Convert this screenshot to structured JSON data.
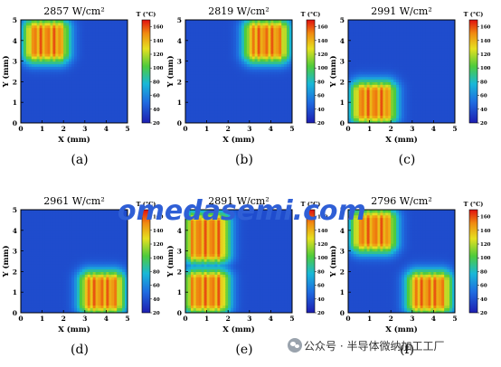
{
  "chart_data": [
    {
      "type": "heatmap",
      "title": "2857 W/cm²",
      "caption": "(a)",
      "xlabel": "X (mm)",
      "ylabel": "Y (mm)",
      "xlim": [
        0,
        5
      ],
      "ylim": [
        0,
        5
      ],
      "xticks": [
        "0",
        "1",
        "2",
        "3",
        "4",
        "5"
      ],
      "yticks": [
        "0",
        "1",
        "2",
        "3",
        "4",
        "5"
      ],
      "colorbar": {
        "label": "T (°C)",
        "ticks": [
          "20",
          "40",
          "60",
          "80",
          "100",
          "120",
          "140",
          "160"
        ],
        "range": [
          20,
          170
        ]
      },
      "heat_sources": [
        {
          "x_range": [
            0.2,
            2.2
          ],
          "y_range": [
            3.0,
            5.0
          ],
          "peak_T": 160
        }
      ]
    },
    {
      "type": "heatmap",
      "title": "2819 W/cm²",
      "caption": "(b)",
      "xlabel": "X (mm)",
      "ylabel": "Y (mm)",
      "xlim": [
        0,
        5
      ],
      "ylim": [
        0,
        5
      ],
      "xticks": [
        "0",
        "1",
        "2",
        "3",
        "4",
        "5"
      ],
      "yticks": [
        "0",
        "1",
        "2",
        "3",
        "4",
        "5"
      ],
      "colorbar": {
        "label": "T (°C)",
        "ticks": [
          "20",
          "40",
          "60",
          "80",
          "100",
          "120",
          "140",
          "160"
        ],
        "range": [
          20,
          170
        ]
      },
      "heat_sources": [
        {
          "x_range": [
            2.8,
            4.8
          ],
          "y_range": [
            3.0,
            5.0
          ],
          "peak_T": 160
        }
      ]
    },
    {
      "type": "heatmap",
      "title": "2991 W/cm²",
      "caption": "(c)",
      "xlabel": "X (mm)",
      "ylabel": "Y (mm)",
      "xlim": [
        0,
        5
      ],
      "ylim": [
        0,
        5
      ],
      "xticks": [
        "0",
        "1",
        "2",
        "3",
        "4",
        "5"
      ],
      "yticks": [
        "0",
        "1",
        "2",
        "3",
        "4",
        "5"
      ],
      "colorbar": {
        "label": "T (°C)",
        "ticks": [
          "20",
          "40",
          "60",
          "80",
          "100",
          "120",
          "140",
          "160"
        ],
        "range": [
          20,
          170
        ]
      },
      "heat_sources": [
        {
          "x_range": [
            0.2,
            2.2
          ],
          "y_range": [
            0.0,
            2.0
          ],
          "peak_T": 160
        }
      ]
    },
    {
      "type": "heatmap",
      "title": "2961 W/cm²",
      "caption": "(d)",
      "xlabel": "X (mm)",
      "ylabel": "Y (mm)",
      "xlim": [
        0,
        5
      ],
      "ylim": [
        0,
        5
      ],
      "xticks": [
        "0",
        "1",
        "2",
        "3",
        "4",
        "5"
      ],
      "yticks": [
        "0",
        "1",
        "2",
        "3",
        "4",
        "5"
      ],
      "colorbar": {
        "label": "T (°C)",
        "ticks": [
          "20",
          "40",
          "60",
          "80",
          "100",
          "120",
          "140",
          "160"
        ],
        "range": [
          20,
          170
        ]
      },
      "heat_sources": [
        {
          "x_range": [
            2.8,
            4.8
          ],
          "y_range": [
            0.0,
            2.0
          ],
          "peak_T": 160
        }
      ]
    },
    {
      "type": "heatmap",
      "title": "2891 W/cm²",
      "caption": "(e)",
      "xlabel": "X (mm)",
      "ylabel": "Y (mm)",
      "xlim": [
        0,
        5
      ],
      "ylim": [
        0,
        5
      ],
      "xticks": [
        "0",
        "1",
        "2",
        "3",
        "4",
        "5"
      ],
      "yticks": [
        "0",
        "1",
        "2",
        "3",
        "4",
        "5"
      ],
      "colorbar": {
        "label": "T (°C)",
        "ticks": [
          "20",
          "40",
          "60",
          "80",
          "100",
          "120",
          "140",
          "160"
        ],
        "range": [
          20,
          170
        ]
      },
      "heat_sources": [
        {
          "x_range": [
            0.0,
            2.0
          ],
          "y_range": [
            0.0,
            2.1
          ],
          "peak_T": 160
        },
        {
          "x_range": [
            0.0,
            2.0
          ],
          "y_range": [
            2.3,
            5.0
          ],
          "peak_T": 160
        }
      ]
    },
    {
      "type": "heatmap",
      "title": "2796 W/cm²",
      "caption": "(f)",
      "xlabel": "X (mm)",
      "ylabel": "Y (mm)",
      "xlim": [
        0,
        5
      ],
      "ylim": [
        0,
        5
      ],
      "xticks": [
        "0",
        "1",
        "2",
        "3",
        "4",
        "5"
      ],
      "yticks": [
        "0",
        "1",
        "2",
        "3",
        "4",
        "5"
      ],
      "colorbar": {
        "label": "T (°C)",
        "ticks": [
          "20",
          "40",
          "60",
          "80",
          "100",
          "120",
          "140",
          "160"
        ],
        "range": [
          20,
          170
        ]
      },
      "heat_sources": [
        {
          "x_range": [
            0.2,
            2.2
          ],
          "y_range": [
            3.0,
            5.0
          ],
          "peak_T": 160
        },
        {
          "x_range": [
            2.8,
            4.8
          ],
          "y_range": [
            0.0,
            2.0
          ],
          "peak_T": 160
        }
      ]
    }
  ],
  "watermark": {
    "text": "omedasemi.com"
  },
  "footer": {
    "wechat_label": "公众号 · 半导体微纳加工工厂",
    "wechat_icon": "wechat-icon"
  }
}
